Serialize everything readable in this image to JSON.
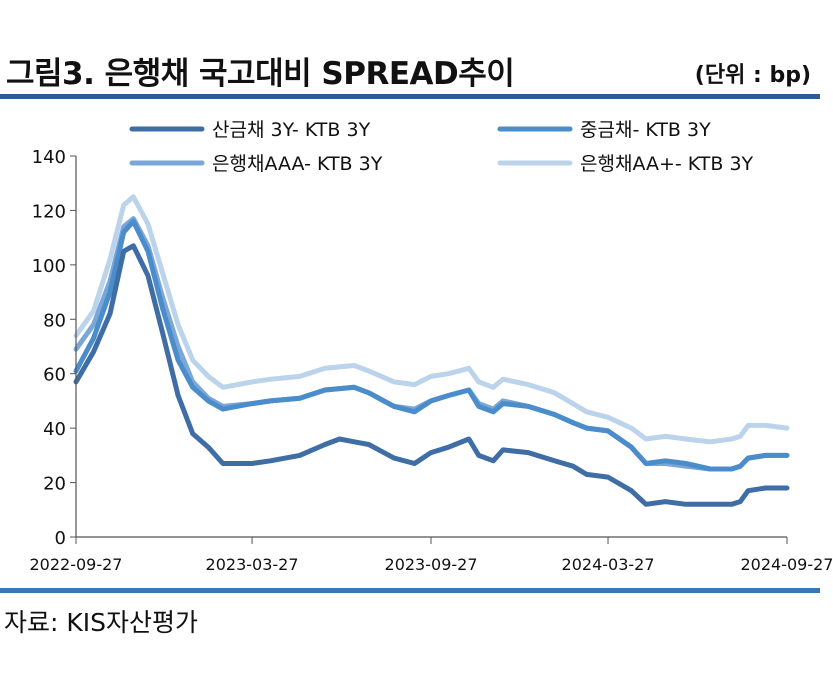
{
  "header": {
    "title": "그림3. 은행채 국고대비 SPREAD추이",
    "unit": "(단위 : bp)"
  },
  "footer": {
    "source": "자료: KIS자산평가"
  },
  "chart_data": {
    "type": "line",
    "title": "그림3. 은행채 국고대비 SPREAD추이",
    "unit": "(단위 : bp)",
    "xlabel": "",
    "ylabel": "",
    "ylim": [
      0,
      140
    ],
    "yticks": [
      0,
      20,
      40,
      60,
      80,
      100,
      120,
      140
    ],
    "x_ticks": [
      "2022-09-27",
      "2023-03-27",
      "2023-09-27",
      "2024-03-27",
      "2024-09-27"
    ],
    "x_range": [
      "2022-09-27",
      "2024-09-27"
    ],
    "grid": false,
    "legend_position": "top",
    "series": [
      {
        "name": "산금채 3Y- KTB 3Y",
        "color": "#3f6ea6",
        "points": [
          [
            "2022-09-27",
            57
          ],
          [
            "2022-10-15",
            68
          ],
          [
            "2022-11-01",
            82
          ],
          [
            "2022-11-15",
            105
          ],
          [
            "2022-11-25",
            107
          ],
          [
            "2022-12-10",
            96
          ],
          [
            "2022-12-25",
            75
          ],
          [
            "2023-01-10",
            52
          ],
          [
            "2023-01-25",
            38
          ],
          [
            "2023-02-10",
            33
          ],
          [
            "2023-02-25",
            27
          ],
          [
            "2023-03-27",
            27
          ],
          [
            "2023-04-15",
            28
          ],
          [
            "2023-05-15",
            30
          ],
          [
            "2023-06-10",
            34
          ],
          [
            "2023-06-25",
            36
          ],
          [
            "2023-07-10",
            35
          ],
          [
            "2023-07-25",
            34
          ],
          [
            "2023-08-20",
            29
          ],
          [
            "2023-09-10",
            27
          ],
          [
            "2023-09-27",
            31
          ],
          [
            "2023-10-15",
            33
          ],
          [
            "2023-11-05",
            36
          ],
          [
            "2023-11-15",
            30
          ],
          [
            "2023-11-30",
            28
          ],
          [
            "2023-12-10",
            32
          ],
          [
            "2024-01-05",
            31
          ],
          [
            "2024-02-01",
            28
          ],
          [
            "2024-02-20",
            26
          ],
          [
            "2024-03-05",
            23
          ],
          [
            "2024-03-27",
            22
          ],
          [
            "2024-04-20",
            17
          ],
          [
            "2024-05-05",
            12
          ],
          [
            "2024-05-25",
            13
          ],
          [
            "2024-06-15",
            12
          ],
          [
            "2024-07-10",
            12
          ],
          [
            "2024-08-01",
            12
          ],
          [
            "2024-08-10",
            13
          ],
          [
            "2024-08-18",
            17
          ],
          [
            "2024-09-05",
            18
          ],
          [
            "2024-09-27",
            18
          ]
        ]
      },
      {
        "name": "중금채- KTB 3Y",
        "color": "#4b8dcb",
        "points": [
          [
            "2022-09-27",
            61
          ],
          [
            "2022-10-15",
            73
          ],
          [
            "2022-11-01",
            90
          ],
          [
            "2022-11-15",
            112
          ],
          [
            "2022-11-25",
            116
          ],
          [
            "2022-12-10",
            105
          ],
          [
            "2022-12-25",
            84
          ],
          [
            "2023-01-10",
            65
          ],
          [
            "2023-01-25",
            55
          ],
          [
            "2023-02-10",
            50
          ],
          [
            "2023-02-25",
            47
          ],
          [
            "2023-03-27",
            49
          ],
          [
            "2023-04-15",
            50
          ],
          [
            "2023-05-15",
            51
          ],
          [
            "2023-06-10",
            54
          ],
          [
            "2023-07-10",
            55
          ],
          [
            "2023-07-25",
            53
          ],
          [
            "2023-08-20",
            48
          ],
          [
            "2023-09-10",
            46
          ],
          [
            "2023-09-27",
            50
          ],
          [
            "2023-10-15",
            52
          ],
          [
            "2023-11-05",
            54
          ],
          [
            "2023-11-15",
            48
          ],
          [
            "2023-11-30",
            46
          ],
          [
            "2023-12-10",
            49
          ],
          [
            "2024-01-05",
            48
          ],
          [
            "2024-02-01",
            45
          ],
          [
            "2024-02-20",
            42
          ],
          [
            "2024-03-05",
            40
          ],
          [
            "2024-03-27",
            39
          ],
          [
            "2024-04-20",
            33
          ],
          [
            "2024-05-05",
            27
          ],
          [
            "2024-05-25",
            28
          ],
          [
            "2024-06-15",
            27
          ],
          [
            "2024-07-10",
            25
          ],
          [
            "2024-08-01",
            25
          ],
          [
            "2024-08-10",
            26
          ],
          [
            "2024-08-18",
            29
          ],
          [
            "2024-09-05",
            30
          ],
          [
            "2024-09-27",
            30
          ]
        ]
      },
      {
        "name": "은행채AAA- KTB 3Y",
        "color": "#7aa7d8",
        "points": [
          [
            "2022-09-27",
            69
          ],
          [
            "2022-10-15",
            78
          ],
          [
            "2022-11-01",
            94
          ],
          [
            "2022-11-15",
            114
          ],
          [
            "2022-11-25",
            117
          ],
          [
            "2022-12-10",
            107
          ],
          [
            "2022-12-25",
            88
          ],
          [
            "2023-01-10",
            70
          ],
          [
            "2023-01-25",
            57
          ],
          [
            "2023-02-10",
            51
          ],
          [
            "2023-02-25",
            48
          ],
          [
            "2023-03-27",
            49
          ],
          [
            "2023-04-15",
            50
          ],
          [
            "2023-05-15",
            51
          ],
          [
            "2023-06-10",
            54
          ],
          [
            "2023-07-10",
            55
          ],
          [
            "2023-07-25",
            53
          ],
          [
            "2023-08-20",
            48
          ],
          [
            "2023-09-10",
            47
          ],
          [
            "2023-09-27",
            50
          ],
          [
            "2023-10-15",
            52
          ],
          [
            "2023-11-05",
            54
          ],
          [
            "2023-11-15",
            49
          ],
          [
            "2023-11-30",
            47
          ],
          [
            "2023-12-10",
            50
          ],
          [
            "2024-01-05",
            48
          ],
          [
            "2024-02-01",
            45
          ],
          [
            "2024-02-20",
            42
          ],
          [
            "2024-03-05",
            40
          ],
          [
            "2024-03-27",
            39
          ],
          [
            "2024-04-20",
            33
          ],
          [
            "2024-05-05",
            27
          ],
          [
            "2024-05-25",
            27
          ],
          [
            "2024-06-15",
            26
          ],
          [
            "2024-07-10",
            25
          ],
          [
            "2024-08-01",
            25
          ],
          [
            "2024-08-10",
            26
          ],
          [
            "2024-08-18",
            29
          ],
          [
            "2024-09-05",
            30
          ],
          [
            "2024-09-27",
            30
          ]
        ]
      },
      {
        "name": "은행채AA+- KTB 3Y",
        "color": "#bcd3ec",
        "points": [
          [
            "2022-09-27",
            74
          ],
          [
            "2022-10-15",
            83
          ],
          [
            "2022-11-01",
            102
          ],
          [
            "2022-11-15",
            122
          ],
          [
            "2022-11-25",
            125
          ],
          [
            "2022-12-10",
            115
          ],
          [
            "2022-12-25",
            97
          ],
          [
            "2023-01-10",
            78
          ],
          [
            "2023-01-25",
            65
          ],
          [
            "2023-02-10",
            59
          ],
          [
            "2023-02-25",
            55
          ],
          [
            "2023-03-27",
            57
          ],
          [
            "2023-04-15",
            58
          ],
          [
            "2023-05-15",
            59
          ],
          [
            "2023-06-10",
            62
          ],
          [
            "2023-07-10",
            63
          ],
          [
            "2023-07-25",
            61
          ],
          [
            "2023-08-20",
            57
          ],
          [
            "2023-09-10",
            56
          ],
          [
            "2023-09-27",
            59
          ],
          [
            "2023-10-15",
            60
          ],
          [
            "2023-11-05",
            62
          ],
          [
            "2023-11-15",
            57
          ],
          [
            "2023-11-30",
            55
          ],
          [
            "2023-12-10",
            58
          ],
          [
            "2024-01-05",
            56
          ],
          [
            "2024-02-01",
            53
          ],
          [
            "2024-02-20",
            49
          ],
          [
            "2024-03-05",
            46
          ],
          [
            "2024-03-27",
            44
          ],
          [
            "2024-04-20",
            40
          ],
          [
            "2024-05-05",
            36
          ],
          [
            "2024-05-25",
            37
          ],
          [
            "2024-06-15",
            36
          ],
          [
            "2024-07-10",
            35
          ],
          [
            "2024-08-01",
            36
          ],
          [
            "2024-08-10",
            37
          ],
          [
            "2024-08-18",
            41
          ],
          [
            "2024-09-05",
            41
          ],
          [
            "2024-09-27",
            40
          ]
        ]
      }
    ]
  }
}
